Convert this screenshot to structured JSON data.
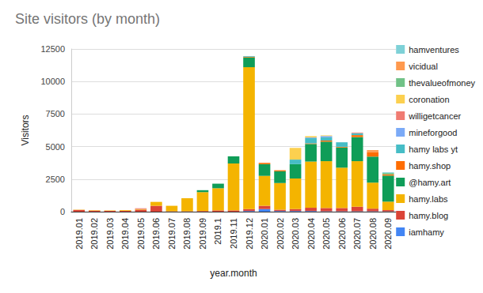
{
  "chart_data": {
    "type": "bar",
    "title": "Site visitors (by month)",
    "xlabel": "year.month",
    "ylabel": "Visitors",
    "categories": [
      "2019.01",
      "2019.02",
      "2019.03",
      "2019.04",
      "2019.05",
      "2019.06",
      "2019.07",
      "2019.08",
      "2019.09",
      "2019.1",
      "2019.11",
      "2019.12",
      "2020.01",
      "2020.02",
      "2020.03",
      "2020.04",
      "2020.05",
      "2020.06",
      "2020.07",
      "2020.08",
      "2020.09"
    ],
    "series": [
      {
        "name": "iamhamy",
        "color": "#4285f4",
        "values": [
          0,
          0,
          0,
          0,
          0,
          0,
          0,
          0,
          0,
          0,
          0,
          50,
          200,
          50,
          50,
          50,
          30,
          30,
          30,
          30,
          20
        ]
      },
      {
        "name": "hamy.blog",
        "color": "#db4437",
        "values": [
          130,
          80,
          60,
          60,
          150,
          450,
          30,
          30,
          50,
          100,
          100,
          150,
          250,
          100,
          150,
          250,
          250,
          250,
          350,
          200,
          100
        ]
      },
      {
        "name": "hamy.labs",
        "color": "#f4b400",
        "values": [
          20,
          30,
          30,
          50,
          50,
          300,
          420,
          1000,
          1450,
          1700,
          3600,
          10900,
          2300,
          2050,
          2350,
          3550,
          3600,
          3100,
          3500,
          2000,
          650
        ]
      },
      {
        "name": "@hamy.art",
        "color": "#0f9d58",
        "values": [
          0,
          0,
          0,
          0,
          0,
          0,
          0,
          0,
          150,
          350,
          550,
          750,
          900,
          900,
          1100,
          1350,
          1500,
          1550,
          1850,
          2000,
          2000
        ]
      },
      {
        "name": "hamy.shop",
        "color": "#ff6d00",
        "values": [
          0,
          0,
          0,
          0,
          0,
          0,
          0,
          0,
          0,
          0,
          0,
          50,
          100,
          80,
          0,
          50,
          80,
          50,
          150,
          350,
          100
        ]
      },
      {
        "name": "hamy labs yt",
        "color": "#46bdc6",
        "values": [
          0,
          0,
          0,
          0,
          0,
          0,
          0,
          0,
          0,
          0,
          0,
          50,
          0,
          0,
          350,
          400,
          250,
          350,
          150,
          0,
          0
        ]
      },
      {
        "name": "mineforgood",
        "color": "#7baaf7",
        "values": [
          0,
          0,
          0,
          0,
          0,
          0,
          0,
          0,
          0,
          0,
          0,
          0,
          0,
          0,
          0,
          50,
          100,
          0,
          0,
          0,
          0
        ]
      },
      {
        "name": "willigetcancer",
        "color": "#f07b72",
        "values": [
          0,
          0,
          0,
          0,
          60,
          0,
          0,
          0,
          0,
          0,
          0,
          0,
          0,
          0,
          0,
          0,
          0,
          0,
          50,
          0,
          0
        ]
      },
      {
        "name": "coronation",
        "color": "#fcd04f",
        "values": [
          0,
          0,
          0,
          0,
          0,
          0,
          0,
          0,
          0,
          0,
          0,
          0,
          0,
          0,
          900,
          100,
          50,
          0,
          0,
          0,
          0
        ]
      },
      {
        "name": "thevalueofmoney",
        "color": "#71c287",
        "values": [
          0,
          0,
          0,
          0,
          0,
          0,
          0,
          0,
          0,
          0,
          0,
          0,
          0,
          0,
          0,
          0,
          0,
          0,
          0,
          0,
          100
        ]
      },
      {
        "name": "vicidual",
        "color": "#ff994d",
        "values": [
          0,
          0,
          0,
          0,
          0,
          0,
          0,
          0,
          0,
          0,
          0,
          0,
          0,
          0,
          0,
          0,
          0,
          0,
          0,
          150,
          0
        ]
      },
      {
        "name": "hamventures",
        "color": "#7ed1d7",
        "values": [
          0,
          0,
          0,
          0,
          0,
          0,
          0,
          0,
          0,
          0,
          0,
          0,
          0,
          0,
          0,
          0,
          0,
          0,
          0,
          0,
          50
        ]
      }
    ],
    "ylim": [
      0,
      12500
    ],
    "yticks": [
      0,
      2500,
      5000,
      7500,
      10000,
      12500
    ],
    "stacked": true,
    "grid": true,
    "legend": "right"
  }
}
